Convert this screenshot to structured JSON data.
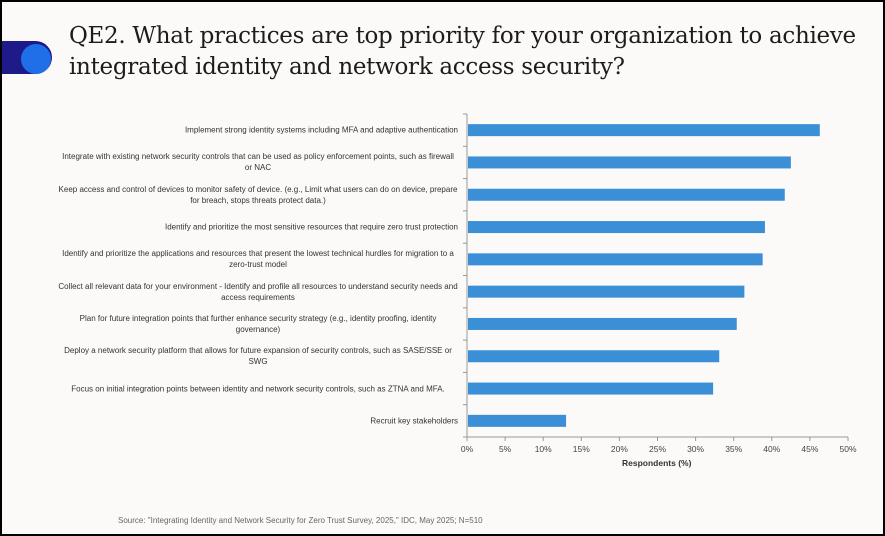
{
  "title": "QE2. What practices are top priority for your organization to achieve integrated identity and network access security?",
  "source": "Source: \"Integrating Identity and Network Security for Zero Trust Survey, 2025,\" IDC, May 2025; N=510",
  "colors": {
    "bar": "#3a8fd6",
    "pill": "#1f1a8a",
    "dot": "#1f6fe8"
  },
  "chart_data": {
    "type": "bar",
    "orientation": "horizontal",
    "categories": [
      "Implement strong identity systems including MFA and adaptive authentication",
      "Integrate with existing network security controls that can be used as policy enforcement points, such as firewall or NAC",
      "Keep access and control of devices to monitor safety of device.  (e.g., Limit what users can do on device, prepare for breach, stops threats protect data.)",
      "Identify and prioritize the most sensitive resources that require zero trust protection",
      "Identify and prioritize the applications and resources that present the lowest technical hurdles for migration to a zero-trust model",
      "Collect all relevant data for your environment - Identify and profile all resources to understand security needs and access requirements",
      "Plan for future integration points that further enhance security strategy (e.g., identity proofing, identity governance)",
      "Deploy a network security platform that allows for future expansion of security controls, such as SASE/SSE or SWG",
      "Focus on initial integration points between identity and network security controls, such as ZTNA and MFA.",
      "Recruit key stakeholders"
    ],
    "values": [
      46.3,
      42.5,
      41.7,
      39.1,
      38.8,
      36.4,
      35.4,
      33.1,
      32.3,
      13.0
    ],
    "xlabel": "Respondents (%)",
    "xlim": [
      0,
      50
    ],
    "xticks": [
      "0%",
      "5%",
      "10%",
      "15%",
      "20%",
      "25%",
      "30%",
      "35%",
      "40%",
      "45%",
      "50%"
    ],
    "grid": false,
    "legend": "none"
  }
}
